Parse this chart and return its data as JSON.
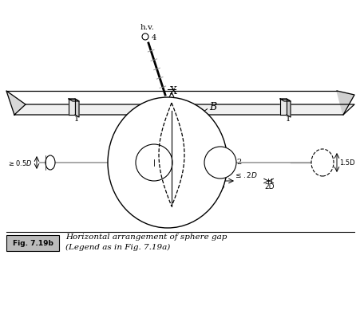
{
  "fig_label": "Fig. 7.19b",
  "fig_caption_line1": "Horizontal arrangement of sphere gap",
  "fig_caption_line2": "(Legend as in Fig. 7.19a)",
  "bg_color": "#ffffff",
  "line_color": "#000000",
  "gray_color": "#999999"
}
